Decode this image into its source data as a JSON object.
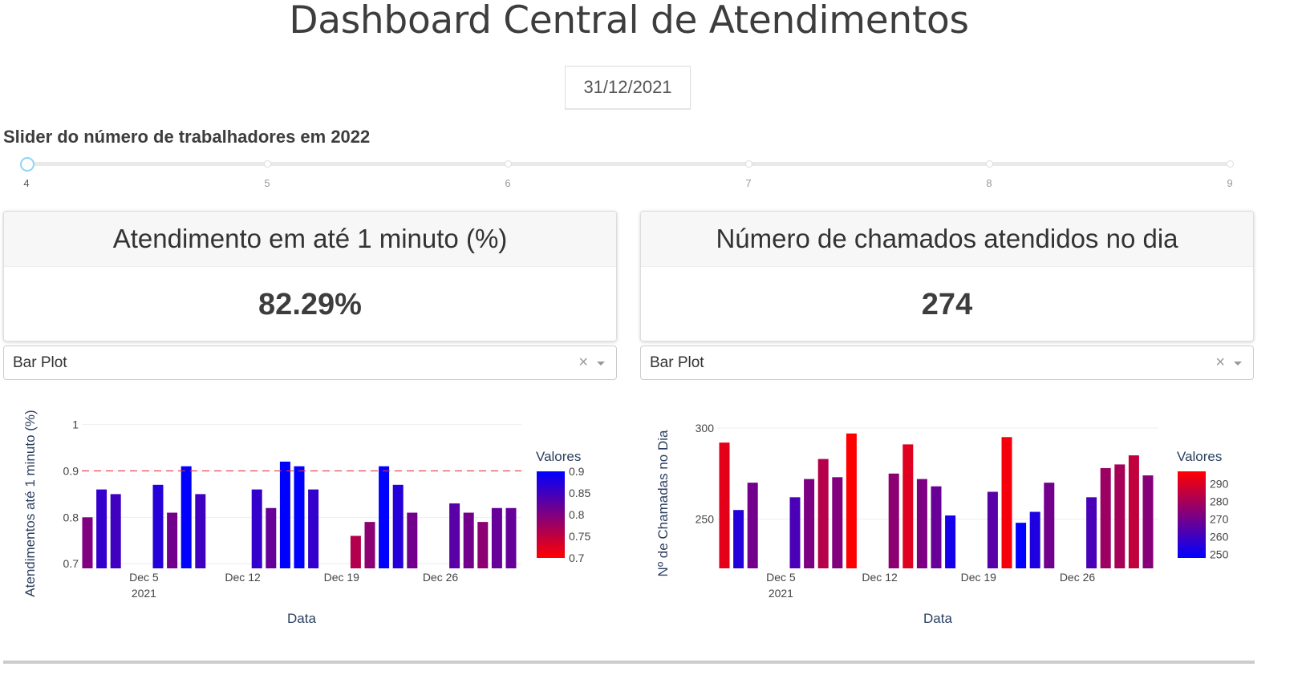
{
  "title": "Dashboard Central de Atendimentos",
  "date_picker": {
    "value": "31/12/2021"
  },
  "slider": {
    "label": "Slider do número de trabalhadores em 2022",
    "marks": [
      "4",
      "5",
      "6",
      "7",
      "8",
      "9"
    ],
    "value": 4
  },
  "cards": [
    {
      "title": "Atendimento em até 1 minuto (%)",
      "value": "82.29%"
    },
    {
      "title": "Número de chamados atendidos no dia",
      "value": "274"
    }
  ],
  "dropdowns": [
    {
      "value": "Bar Plot",
      "clear": "×"
    },
    {
      "value": "Bar Plot",
      "clear": "×"
    }
  ],
  "colors": {
    "blue": "#0000ff",
    "red": "#ff0000",
    "threshold_line": "#e8343a"
  },
  "chart_data": [
    {
      "type": "bar",
      "x_ticks": [
        "Dec 5",
        "Dec 12",
        "Dec 19",
        "Dec 26"
      ],
      "x_tick_year": "2021",
      "xlabel": "Data",
      "ylabel": "Atendimentos até 1 minuto (%)",
      "y_ticks": [
        "0.7",
        "0.8",
        "0.9",
        "1"
      ],
      "ylim": [
        0.69,
        1.02
      ],
      "threshold": 0.9,
      "legend_title": "Valores",
      "colorbar_ticks": [
        "0.9",
        "0.85",
        "0.8",
        "0.75",
        "0.7"
      ],
      "color_range": [
        0.7,
        0.9
      ],
      "color_low": "#ff0000",
      "color_high": "#0000ff",
      "x": [
        "2021-12-01",
        "2021-12-02",
        "2021-12-03",
        "2021-12-06",
        "2021-12-07",
        "2021-12-08",
        "2021-12-09",
        "2021-12-13",
        "2021-12-14",
        "2021-12-15",
        "2021-12-16",
        "2021-12-17",
        "2021-12-20",
        "2021-12-21",
        "2021-12-22",
        "2021-12-23",
        "2021-12-24",
        "2021-12-27",
        "2021-12-28",
        "2021-12-29",
        "2021-12-30",
        "2021-12-31"
      ],
      "values": [
        0.8,
        0.86,
        0.85,
        0.87,
        0.81,
        0.91,
        0.85,
        0.86,
        0.82,
        0.92,
        0.91,
        0.86,
        0.76,
        0.79,
        0.91,
        0.87,
        0.81,
        0.83,
        0.81,
        0.79,
        0.82,
        0.82
      ]
    },
    {
      "type": "bar",
      "x_ticks": [
        "Dec 5",
        "Dec 12",
        "Dec 19",
        "Dec 26"
      ],
      "x_tick_year": "2021",
      "xlabel": "Data",
      "ylabel": "Nº de Chamadas no Dia",
      "y_ticks": [
        "250",
        "300"
      ],
      "ylim": [
        223,
        307
      ],
      "legend_title": "Valores",
      "colorbar_ticks": [
        "290",
        "280",
        "270",
        "260",
        "250"
      ],
      "color_range": [
        248,
        297
      ],
      "color_low": "#0000ff",
      "color_high": "#ff0000",
      "x": [
        "2021-12-01",
        "2021-12-02",
        "2021-12-03",
        "2021-12-06",
        "2021-12-07",
        "2021-12-08",
        "2021-12-09",
        "2021-12-10",
        "2021-12-13",
        "2021-12-14",
        "2021-12-15",
        "2021-12-16",
        "2021-12-17",
        "2021-12-20",
        "2021-12-21",
        "2021-12-22",
        "2021-12-23",
        "2021-12-24",
        "2021-12-27",
        "2021-12-28",
        "2021-12-29",
        "2021-12-30",
        "2021-12-31"
      ],
      "values": [
        292,
        255,
        270,
        262,
        272,
        283,
        273,
        297,
        275,
        291,
        272,
        268,
        252,
        265,
        295,
        248,
        254,
        270,
        262,
        278,
        280,
        285,
        274
      ]
    }
  ]
}
